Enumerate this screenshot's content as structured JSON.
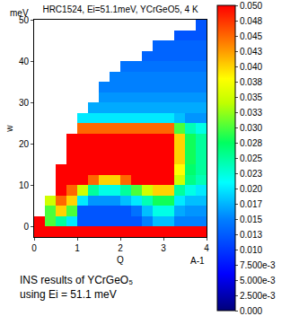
{
  "chart_data": {
    "type": "heatmap",
    "title": "HRC1524, Ei=51.1meV, YCrGeO5, 4 K",
    "x_label": "Q",
    "x_unit": "A-1",
    "y_label": "w",
    "y_unit": "meV",
    "caption": [
      "INS results of YCrGeO₅",
      "using Ei = 51.1 meV"
    ],
    "xlim": [
      0,
      4
    ],
    "xticks": [
      0,
      1,
      2,
      3,
      4
    ],
    "ylim": [
      -2.5,
      50
    ],
    "yticks": [
      0,
      10,
      20,
      30,
      40,
      50
    ],
    "x": [
      0.125,
      0.375,
      0.625,
      0.875,
      1.125,
      1.375,
      1.625,
      1.875,
      2.125,
      2.375,
      2.625,
      2.875,
      3.125,
      3.375,
      3.625,
      3.875
    ],
    "y": [
      -1.25,
      1.25,
      3.75,
      6.25,
      8.75,
      11.25,
      13.75,
      16.25,
      18.75,
      21.25,
      23.75,
      26.25,
      28.75,
      31.25,
      33.75,
      36.25,
      38.75,
      41.25,
      43.75,
      46.25,
      48.75
    ],
    "z": [
      [
        0.05,
        0.05,
        0.05,
        0.05,
        0.05,
        0.05,
        0.05,
        0.05,
        0.05,
        0.05,
        0.05,
        0.05,
        0.05,
        0.05,
        0.05,
        0.05
      ],
      [
        0.05,
        0.03,
        0.025,
        0.02,
        0.012,
        0.012,
        0.012,
        0.012,
        0.012,
        0.012,
        0.015,
        0.018,
        0.018,
        0.015,
        0.015,
        0.015
      ],
      [
        null,
        0.03,
        0.04,
        0.03,
        0.012,
        0.012,
        0.012,
        0.012,
        0.012,
        0.014,
        0.018,
        0.022,
        0.022,
        0.017,
        0.016,
        0.016
      ],
      [
        null,
        0.035,
        0.045,
        0.04,
        0.02,
        0.016,
        0.016,
        0.016,
        0.018,
        0.02,
        0.024,
        0.028,
        0.028,
        0.02,
        0.018,
        0.018
      ],
      [
        null,
        null,
        0.05,
        0.045,
        0.035,
        0.025,
        0.022,
        0.022,
        0.025,
        0.03,
        0.035,
        0.04,
        0.04,
        0.025,
        0.022,
        0.02
      ],
      [
        null,
        null,
        0.05,
        0.05,
        0.05,
        0.045,
        0.04,
        0.04,
        0.045,
        0.05,
        0.05,
        0.05,
        0.05,
        0.035,
        0.026,
        0.024
      ],
      [
        null,
        null,
        0.05,
        0.05,
        0.05,
        0.05,
        0.05,
        0.05,
        0.05,
        0.05,
        0.05,
        0.05,
        0.05,
        0.038,
        0.027,
        0.025
      ],
      [
        null,
        null,
        null,
        0.05,
        0.05,
        0.05,
        0.05,
        0.05,
        0.05,
        0.05,
        0.05,
        0.05,
        0.05,
        0.04,
        0.028,
        0.025
      ],
      [
        null,
        null,
        null,
        0.05,
        0.05,
        0.05,
        0.05,
        0.05,
        0.05,
        0.05,
        0.05,
        0.05,
        0.05,
        0.04,
        0.028,
        0.025
      ],
      [
        null,
        null,
        null,
        0.05,
        0.05,
        0.05,
        0.05,
        0.05,
        0.05,
        0.05,
        0.05,
        0.05,
        0.05,
        0.04,
        0.028,
        0.025
      ],
      [
        null,
        null,
        null,
        null,
        0.045,
        0.045,
        0.045,
        0.045,
        0.045,
        0.045,
        0.045,
        0.045,
        0.045,
        0.03,
        0.024,
        0.022
      ],
      [
        null,
        null,
        null,
        null,
        0.02,
        0.02,
        0.02,
        0.02,
        0.02,
        0.02,
        0.02,
        0.02,
        0.02,
        0.018,
        0.016,
        0.016
      ],
      [
        null,
        null,
        null,
        null,
        null,
        0.017,
        0.017,
        0.017,
        0.017,
        0.017,
        0.017,
        0.017,
        0.017,
        0.017,
        0.017,
        0.017
      ],
      [
        null,
        null,
        null,
        null,
        null,
        null,
        0.016,
        0.016,
        0.016,
        0.016,
        0.016,
        0.016,
        0.016,
        0.016,
        0.016,
        0.016
      ],
      [
        null,
        null,
        null,
        null,
        null,
        null,
        0.015,
        0.015,
        0.015,
        0.015,
        0.015,
        0.015,
        0.015,
        0.015,
        0.015,
        0.015
      ],
      [
        null,
        null,
        null,
        null,
        null,
        null,
        null,
        0.015,
        0.015,
        0.015,
        0.015,
        0.015,
        0.015,
        0.015,
        0.015,
        0.015
      ],
      [
        null,
        null,
        null,
        null,
        null,
        null,
        null,
        null,
        0.014,
        0.014,
        0.014,
        0.014,
        0.014,
        0.014,
        0.014,
        0.014
      ],
      [
        null,
        null,
        null,
        null,
        null,
        null,
        null,
        null,
        null,
        null,
        0.013,
        0.013,
        0.013,
        0.013,
        0.013,
        0.013
      ],
      [
        null,
        null,
        null,
        null,
        null,
        null,
        null,
        null,
        null,
        null,
        null,
        0.013,
        0.013,
        0.013,
        0.013,
        0.013
      ],
      [
        null,
        null,
        null,
        null,
        null,
        null,
        null,
        null,
        null,
        null,
        null,
        null,
        null,
        0.012,
        0.012,
        0.012
      ],
      [
        null,
        null,
        null,
        null,
        null,
        null,
        null,
        null,
        null,
        null,
        null,
        null,
        null,
        null,
        null,
        0.012
      ]
    ],
    "zlim": [
      0,
      0.05
    ],
    "zticks": [
      {
        "value": 0,
        "label": "0.000"
      },
      {
        "value": 0.0025,
        "label": "2.500e-3"
      },
      {
        "value": 0.005,
        "label": "5.000e-3"
      },
      {
        "value": 0.0075,
        "label": "7.500e-3"
      },
      {
        "value": 0.01,
        "label": "0.010"
      },
      {
        "value": 0.0125,
        "label": "0.013"
      },
      {
        "value": 0.015,
        "label": "0.015"
      },
      {
        "value": 0.0175,
        "label": "0.017"
      },
      {
        "value": 0.02,
        "label": "0.020"
      },
      {
        "value": 0.0225,
        "label": "0.023"
      },
      {
        "value": 0.025,
        "label": "0.025"
      },
      {
        "value": 0.0275,
        "label": "0.028"
      },
      {
        "value": 0.03,
        "label": "0.030"
      },
      {
        "value": 0.0325,
        "label": "0.033"
      },
      {
        "value": 0.035,
        "label": "0.035"
      },
      {
        "value": 0.0375,
        "label": "0.038"
      },
      {
        "value": 0.04,
        "label": "0.040"
      },
      {
        "value": 0.0425,
        "label": "0.043"
      },
      {
        "value": 0.045,
        "label": "0.045"
      },
      {
        "value": 0.0475,
        "label": "0.048"
      },
      {
        "value": 0.05,
        "label": "0.050"
      }
    ]
  }
}
